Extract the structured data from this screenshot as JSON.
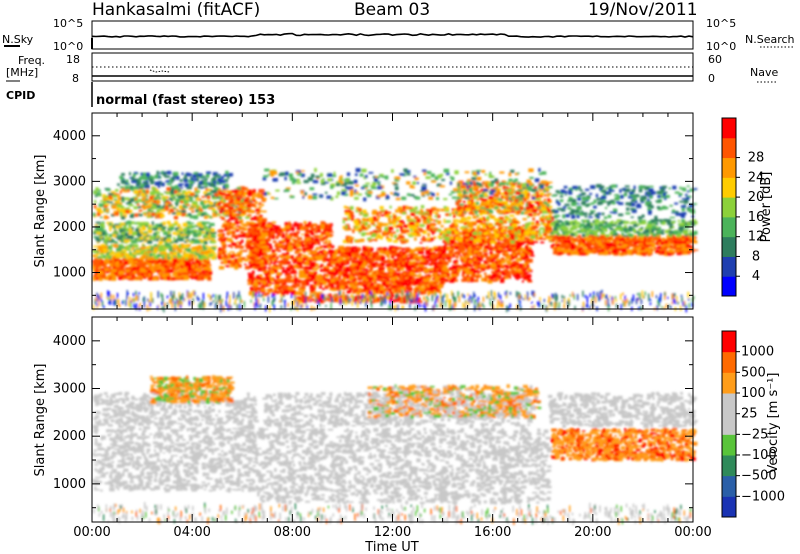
{
  "header": {
    "station": "Hankasalmi (fitACF)",
    "beam": "Beam 03",
    "date": "19/Nov/2011"
  },
  "summary_panels": {
    "nsky": {
      "left_label": "N.Sky",
      "left_ticks": [
        "10^5",
        "10^0"
      ],
      "right_label": "N.Search",
      "right_ticks": [
        "10^5",
        "10^0"
      ]
    },
    "freq": {
      "left_label_1": "Freq.",
      "left_label_2": "[MHz]",
      "left_ticks": [
        "18",
        "8"
      ],
      "right_label": "Nave",
      "right_ticks": [
        "60",
        "0"
      ]
    },
    "cpid": {
      "label": "CPID",
      "mode": "normal (fast stereo) 153"
    }
  },
  "colors": {
    "power_scale": [
      "#0000ff",
      "#1f3fb0",
      "#2e7d5e",
      "#4bb35a",
      "#8cd13a",
      "#ffcc00",
      "#ff9900",
      "#ff5500",
      "#ff0000"
    ],
    "velocity_scale": [
      "#1a33b3",
      "#2a5fa8",
      "#2f8a5a",
      "#59c43a",
      "#c8c8c8",
      "#c8c8c8",
      "#ff9d1a",
      "#ff6a00",
      "#ff0000"
    ],
    "ground_scatter": "#c8c8c8"
  },
  "chart_data": [
    {
      "type": "heatmap",
      "name": "power",
      "ylabel": "Slant Range [km]",
      "yticks": [
        "1000",
        "2000",
        "3000",
        "4000"
      ],
      "ylim": [
        200,
        4500
      ],
      "xlim": [
        "00:00",
        "24:00"
      ],
      "colorbar_label": "Power [dB]",
      "colorbar_ticks": [
        "4",
        "8",
        "12",
        "16",
        "20",
        "24",
        "28"
      ],
      "colorbar_range": [
        0,
        32
      ]
    },
    {
      "type": "heatmap",
      "name": "velocity",
      "ylabel": "Slant Range [km]",
      "yticks": [
        "1000",
        "2000",
        "3000",
        "4000"
      ],
      "ylim": [
        200,
        4500
      ],
      "xlabel": "Time UT",
      "xticks": [
        "00:00",
        "04:00",
        "08:00",
        "12:00",
        "16:00",
        "20:00",
        "00:00"
      ],
      "colorbar_label": "Velocity [m s⁻¹]",
      "colorbar_ticks": [
        "1000",
        "500",
        "100",
        "25",
        "−25",
        "−100",
        "−500",
        "−1000"
      ]
    }
  ]
}
